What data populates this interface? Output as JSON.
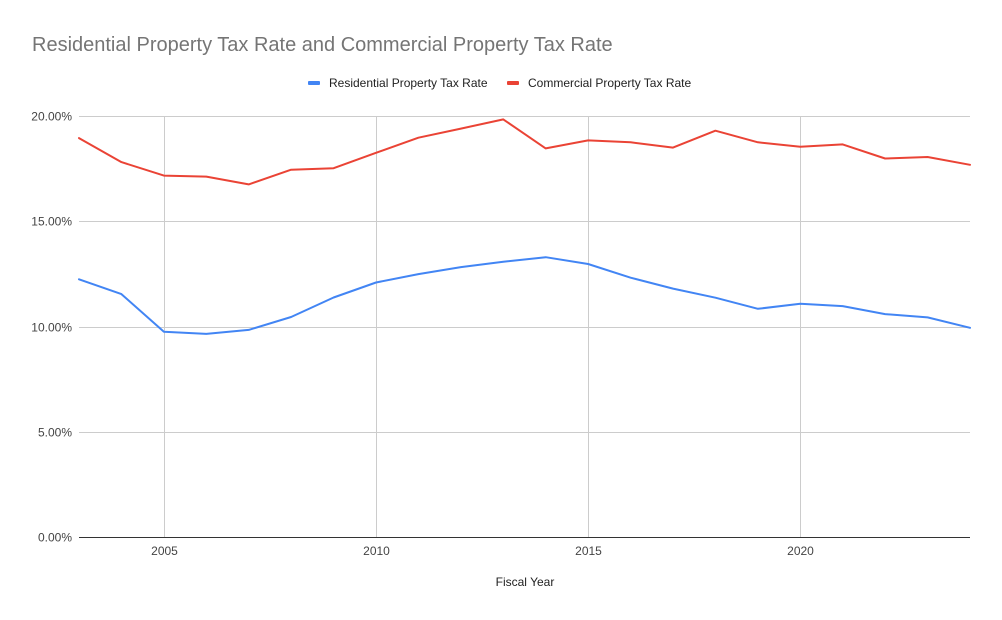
{
  "chart_data": {
    "type": "line",
    "title": "Residential Property Tax Rate and Commercial Property Tax Rate",
    "xlabel": "Fiscal Year",
    "ylabel": "",
    "x": [
      2003,
      2004,
      2005,
      2006,
      2007,
      2008,
      2009,
      2010,
      2011,
      2012,
      2013,
      2014,
      2015,
      2016,
      2017,
      2018,
      2019,
      2020,
      2021,
      2022,
      2023,
      2024
    ],
    "xlim": [
      2003,
      2024
    ],
    "ylim": [
      0,
      20
    ],
    "x_ticks": [
      2005,
      2010,
      2015,
      2020
    ],
    "x_tick_labels": [
      "2005",
      "2010",
      "2015",
      "2020"
    ],
    "y_ticks": [
      0,
      5,
      10,
      15,
      20
    ],
    "y_tick_labels": [
      "0.00%",
      "5.00%",
      "10.00%",
      "15.00%",
      "20.00%"
    ],
    "grid": true,
    "legend_position": "top",
    "series": [
      {
        "name": "Residential Property Tax Rate",
        "color": "#4285f4",
        "values": [
          12.24,
          11.54,
          9.75,
          9.65,
          9.84,
          10.45,
          11.38,
          12.09,
          12.49,
          12.82,
          13.08,
          13.29,
          12.97,
          12.32,
          11.8,
          11.37,
          10.84,
          11.08,
          10.97,
          10.59,
          10.43,
          9.94
        ]
      },
      {
        "name": "Commercial Property Tax Rate",
        "color": "#ea4335",
        "values": [
          18.95,
          17.81,
          17.17,
          17.12,
          16.75,
          17.45,
          17.52,
          18.25,
          18.97,
          19.4,
          19.84,
          18.46,
          18.84,
          18.75,
          18.5,
          19.3,
          18.75,
          18.54,
          18.65,
          17.98,
          18.05,
          17.68
        ]
      }
    ]
  }
}
